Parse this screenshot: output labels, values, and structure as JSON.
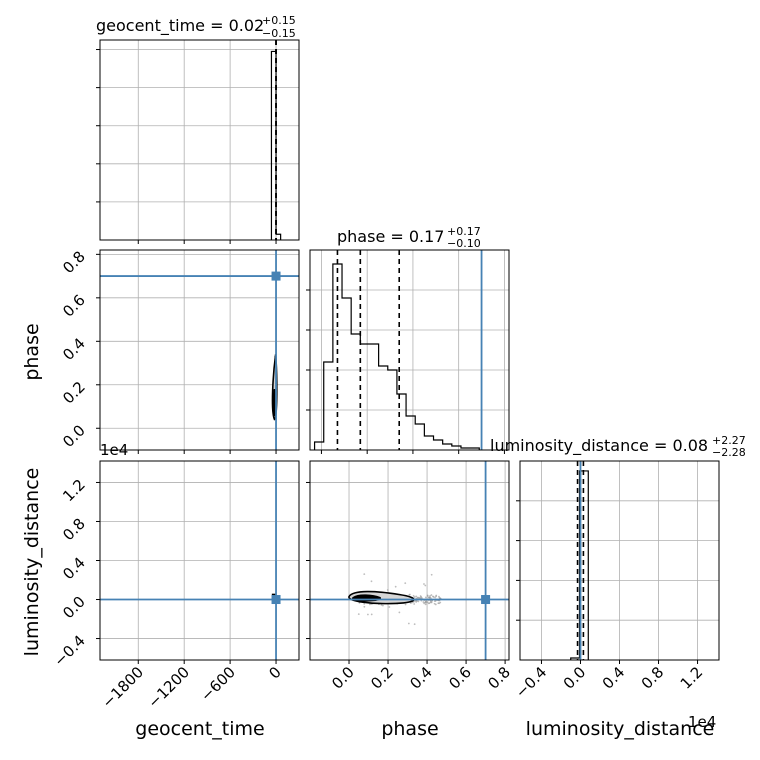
{
  "colors": {
    "truth": "#4682b4",
    "line": "#000000",
    "grid": "#b0b0b0",
    "scatter": "#9a9a9a"
  },
  "chart_data": [
    {
      "type": "histogram",
      "panel": "geocent_time",
      "title": {
        "label": "geocent_time = 0.02",
        "sup": "+0.15",
        "sub": "−0.15"
      },
      "xlim": [
        -2300,
        300
      ],
      "bins": [
        [
          -60,
          0,
          0.99
        ],
        [
          0,
          60,
          0.03
        ]
      ],
      "quantiles": [
        -0.13,
        0.02,
        0.17
      ],
      "truth": null
    },
    {
      "type": "contour",
      "panel": "phase-vs-geocent_time",
      "ylabel": "phase",
      "yticks": [
        "0.0",
        "0.2",
        "0.4",
        "0.6",
        "0.8"
      ],
      "xlim": [
        -2300,
        300
      ],
      "ylim": [
        -0.1,
        0.82
      ],
      "truth": {
        "x": 0,
        "y": 0.7
      }
    },
    {
      "type": "histogram",
      "panel": "phase",
      "title": {
        "label": "phase = 0.17",
        "sup": "+0.17",
        "sub": "−0.10"
      },
      "xlim": [
        -0.05,
        0.82
      ],
      "bins": [
        [
          -0.03,
          0.01,
          0.04
        ],
        [
          0.01,
          0.05,
          0.44
        ],
        [
          0.05,
          0.09,
          0.93
        ],
        [
          0.09,
          0.13,
          0.76
        ],
        [
          0.13,
          0.17,
          0.58
        ],
        [
          0.17,
          0.21,
          0.53
        ],
        [
          0.21,
          0.25,
          0.53
        ],
        [
          0.25,
          0.29,
          0.42
        ],
        [
          0.29,
          0.33,
          0.4
        ],
        [
          0.33,
          0.37,
          0.28
        ],
        [
          0.37,
          0.41,
          0.17
        ],
        [
          0.41,
          0.45,
          0.13
        ],
        [
          0.45,
          0.49,
          0.07
        ],
        [
          0.49,
          0.53,
          0.05
        ],
        [
          0.53,
          0.57,
          0.03
        ],
        [
          0.57,
          0.61,
          0.02
        ],
        [
          0.61,
          0.65,
          0.01
        ],
        [
          0.65,
          0.69,
          0.01
        ]
      ],
      "quantiles": [
        0.07,
        0.17,
        0.34
      ],
      "truth": 0.7
    },
    {
      "type": "scatter",
      "panel": "luminosity_distance-vs-geocent_time",
      "ylabel": "luminosity_distance",
      "xlabel": "geocent_time",
      "xticks": [
        "−1800",
        "−1200",
        "−600",
        "0"
      ],
      "yticks": [
        "−0.4",
        "0.0",
        "0.4",
        "0.8",
        "1.2"
      ],
      "offset": "1e4",
      "xlim": [
        -2300,
        300
      ],
      "ylim": [
        -0.62,
        1.42
      ],
      "truth": {
        "x": 0,
        "y": 0
      }
    },
    {
      "type": "contour",
      "panel": "luminosity_distance-vs-phase",
      "xlabel": "phase",
      "xticks": [
        "0.0",
        "0.2",
        "0.4",
        "0.6",
        "0.8"
      ],
      "xlim": [
        -0.2,
        0.82
      ],
      "ylim": [
        -0.62,
        1.42
      ],
      "truth": {
        "x": 0.7,
        "y": 0
      }
    },
    {
      "type": "histogram",
      "panel": "luminosity_distance",
      "title": {
        "label": "luminosity_distance = 0.08",
        "sup": "+2.27",
        "sub": "−2.28"
      },
      "xlabel": "luminosity_distance",
      "xticks": [
        "−0.4",
        "0.0",
        "0.4",
        "0.8",
        "1.2"
      ],
      "offset": "1e4",
      "xlim": [
        -0.62,
        1.42
      ],
      "bins": [
        [
          -0.1,
          -0.01,
          0.01
        ],
        [
          -0.01,
          0.08,
          0.95
        ]
      ],
      "quantiles": [
        -0.03,
        0.0,
        0.03
      ],
      "truth": 0
    }
  ]
}
